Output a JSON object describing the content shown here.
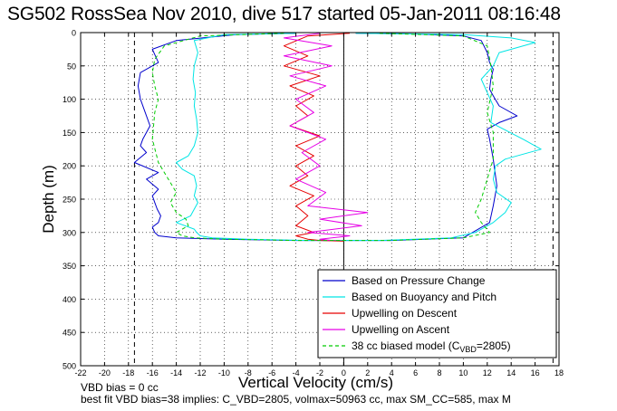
{
  "chart_data": {
    "type": "line",
    "title": "SG502 RossSea Nov 2010, dive 517 started 05-Jan-2011 08:16:48",
    "xlabel": "Vertical Velocity (cm/s)",
    "ylabel": "Depth (m)",
    "xlim": [
      -22,
      18
    ],
    "ylim": [
      500,
      0
    ],
    "xticks": [
      -22,
      -20,
      -18,
      -16,
      -14,
      -12,
      -10,
      -8,
      -6,
      -4,
      -2,
      0,
      2,
      4,
      6,
      8,
      10,
      12,
      14,
      16,
      18
    ],
    "yticks": [
      0,
      50,
      100,
      150,
      200,
      250,
      300,
      350,
      400,
      450,
      500
    ],
    "y_reversed": true,
    "grid": true,
    "legend_position": "bottom-right",
    "reference_lines": [
      {
        "type": "vertical",
        "x": 0,
        "style": "solid",
        "color": "#000000"
      },
      {
        "type": "vertical",
        "x": -17.5,
        "style": "dashed",
        "color": "#000000"
      },
      {
        "type": "vertical",
        "x": 17.5,
        "style": "dashed",
        "color": "#000000"
      }
    ],
    "series": [
      {
        "name": "Based on Pressure Change",
        "color": "#0000cc",
        "style": "solid",
        "x": [
          -4,
          -9,
          -14,
          -16,
          -15.5,
          -17,
          -17.2,
          -17,
          -16.6,
          -16.2,
          -16.8,
          -17,
          -16.5,
          -17.5,
          -15.5,
          -16.5,
          -15.5,
          -16,
          -15.8,
          -15.6,
          -15.3,
          -15.5,
          -16,
          -15.8,
          -15.5,
          -14,
          -10,
          -4,
          4,
          10,
          12.2,
          12.5,
          12.8,
          12.5,
          12.2,
          12,
          13,
          14.5,
          13,
          12.5,
          12.2,
          12.3,
          12.5,
          12.2,
          12,
          11.5,
          10,
          6,
          1
        ],
        "y": [
          1,
          3,
          12,
          25,
          45,
          60,
          80,
          100,
          120,
          140,
          160,
          170,
          180,
          195,
          210,
          220,
          235,
          245,
          255,
          265,
          275,
          285,
          292,
          300,
          305,
          308,
          310,
          312,
          312,
          308,
          285,
          260,
          230,
          190,
          160,
          145,
          135,
          125,
          110,
          95,
          85,
          70,
          55,
          45,
          30,
          12,
          5,
          2,
          1
        ]
      },
      {
        "name": "Based on Buoyancy and Pitch",
        "color": "#00e5e5",
        "style": "solid",
        "x": [
          -4,
          -10,
          -12.5,
          -12.2,
          -12.5,
          -12.6,
          -12.4,
          -12.5,
          -12.3,
          -12.2,
          -12.5,
          -13,
          -14,
          -13.5,
          -12.5,
          -12.3,
          -12.5,
          -12.2,
          -12.5,
          -12.8,
          -14,
          -12.5,
          -12.3,
          -12,
          -11,
          -8,
          -3,
          3,
          9,
          11,
          12.5,
          13.5,
          14,
          12.8,
          12.5,
          12.7,
          13.5,
          16.5,
          15,
          12.3,
          12.5,
          12,
          11.5,
          12.5,
          13,
          16,
          14,
          10,
          1
        ],
        "y": [
          1,
          3,
          12,
          30,
          50,
          70,
          90,
          110,
          130,
          150,
          170,
          185,
          195,
          205,
          215,
          230,
          245,
          255,
          265,
          275,
          285,
          295,
          300,
          305,
          308,
          310,
          312,
          312,
          308,
          300,
          285,
          270,
          255,
          240,
          220,
          200,
          190,
          175,
          160,
          135,
          110,
          90,
          70,
          50,
          30,
          15,
          8,
          3,
          1
        ]
      },
      {
        "name": "Upwelling on Descent",
        "color": "#e60000",
        "style": "solid",
        "x": [
          0.5,
          -3,
          -5,
          -3,
          -5,
          -2,
          -4.5,
          -2.5,
          -4,
          -3,
          -4.5,
          -2,
          -4,
          -2.5,
          -4,
          -3,
          -4.5,
          -2.5,
          -4,
          -3,
          -4,
          -2.5,
          -4,
          -3,
          -2,
          0
        ],
        "y": [
          1,
          5,
          20,
          35,
          50,
          65,
          80,
          95,
          110,
          125,
          140,
          155,
          170,
          185,
          200,
          215,
          230,
          245,
          260,
          275,
          290,
          300,
          305,
          310,
          312,
          313
        ]
      },
      {
        "name": "Upwelling on Ascent",
        "color": "#e600e6",
        "style": "solid",
        "x": [
          -2,
          -5,
          -1,
          -5,
          -1,
          -4.5,
          -1.5,
          -4,
          -2.5,
          -4.5,
          -1.5,
          -3.5,
          -2,
          -4,
          -1.5,
          -3,
          2,
          -2,
          1.5,
          -3,
          0.5,
          -2,
          -1
        ],
        "y": [
          1,
          8,
          20,
          35,
          50,
          65,
          80,
          100,
          120,
          140,
          160,
          180,
          200,
          220,
          240,
          260,
          270,
          280,
          290,
          300,
          305,
          310,
          312
        ]
      },
      {
        "name": "38 cc biased model (C_VBD=2805)",
        "color": "#00cc00",
        "style": "dashed",
        "x": [
          -5,
          -12,
          -15,
          -15.8,
          -16,
          -15.8,
          -15.5,
          -15.8,
          -16,
          -15.5,
          -15,
          -14.5,
          -14,
          -14.5,
          -14,
          -13.2,
          -13,
          -14,
          -13.5,
          -12.5,
          -10,
          -4,
          4,
          10,
          12.2,
          11.5,
          11,
          11.5,
          12,
          12.5,
          12.5,
          12,
          12.5,
          12.3,
          12,
          10,
          3
        ],
        "y": [
          1,
          5,
          20,
          40,
          60,
          80,
          100,
          120,
          160,
          195,
          210,
          225,
          240,
          255,
          270,
          280,
          290,
          300,
          305,
          308,
          310,
          312,
          312,
          308,
          300,
          285,
          270,
          250,
          220,
          190,
          150,
          120,
          80,
          50,
          20,
          5,
          1
        ]
      }
    ],
    "legend": [
      {
        "label": "Based on Pressure Change",
        "color": "#0000cc",
        "style": "solid"
      },
      {
        "label": "Based on Buoyancy and Pitch",
        "color": "#00e5e5",
        "style": "solid"
      },
      {
        "label": "Upwelling on Descent",
        "color": "#e60000",
        "style": "solid"
      },
      {
        "label": "Upwelling on Ascent",
        "color": "#e600e6",
        "style": "solid"
      },
      {
        "label": "38 cc biased model (C",
        "label_sub": "VBD",
        "label_tail": "=2805)",
        "color": "#00cc00",
        "style": "dashed"
      }
    ]
  },
  "notes": {
    "line1": "VBD bias = 0 cc",
    "line2": "best fit VBD bias=38 implies: C_VBD=2805, volmax=50963 cc, max SM_CC=585, max M"
  }
}
